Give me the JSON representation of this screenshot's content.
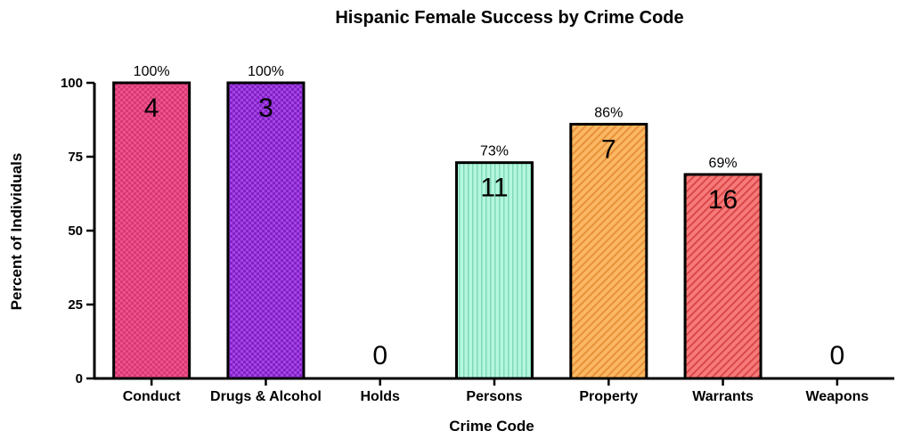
{
  "chart_data": {
    "type": "bar",
    "title": "Hispanic Female Success by Crime Code",
    "xlabel": "Crime Code",
    "ylabel": "Percent of Individuals",
    "ylim": [
      0,
      100
    ],
    "yticks": [
      0,
      25,
      50,
      75,
      100
    ],
    "categories": [
      "Conduct",
      "Drugs & Alcohol",
      "Holds",
      "Persons",
      "Property",
      "Warrants",
      "Weapons"
    ],
    "values": [
      100,
      100,
      0,
      73,
      86,
      69,
      0
    ],
    "percent_labels": [
      "100%",
      "100%",
      "",
      "73%",
      "86%",
      "69%",
      ""
    ],
    "counts": [
      "4",
      "3",
      "0",
      "11",
      "7",
      "16",
      "0"
    ],
    "colors": [
      "#f0508c",
      "#9b35dc",
      "#cccccc",
      "#a8f5d8",
      "#fbb05c",
      "#f56a6a",
      "#cccccc"
    ],
    "patterns": [
      "checker",
      "checker",
      "none",
      "vertical-lines",
      "diagonal",
      "diagonal",
      "none"
    ],
    "grid": false,
    "legend": "none"
  }
}
